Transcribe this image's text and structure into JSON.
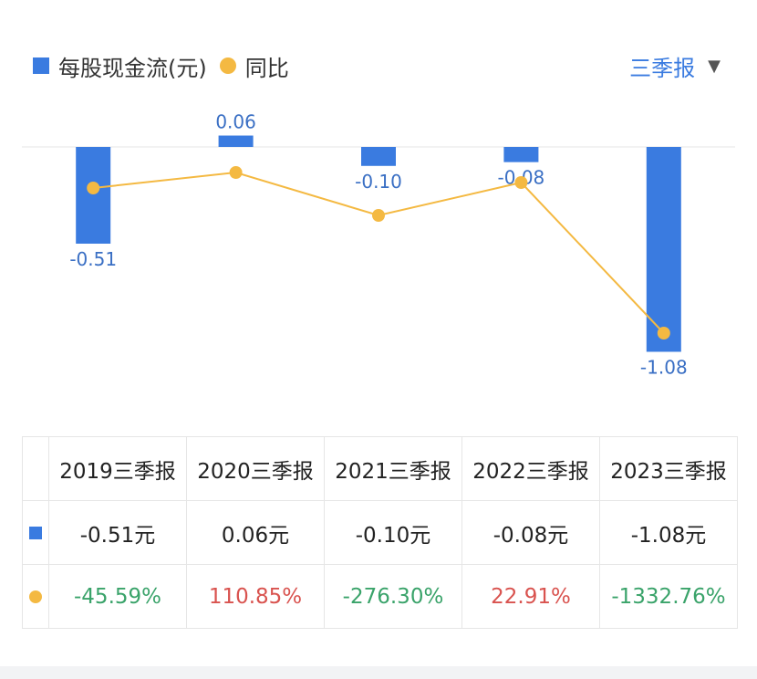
{
  "legend": {
    "bar_label": "每股现金流(元)",
    "line_label": "同比"
  },
  "period_selector": {
    "label": "三季报"
  },
  "colors": {
    "bar": "#3a7be0",
    "line": "#f4b942",
    "positive": "#d9534f",
    "negative": "#3aa36a"
  },
  "chart_data": {
    "type": "bar",
    "categories": [
      "2019三季报",
      "2020三季报",
      "2021三季报",
      "2022三季报",
      "2023三季报"
    ],
    "series": [
      {
        "name": "每股现金流(元)",
        "type": "bar",
        "values": [
          -0.51,
          0.06,
          -0.1,
          -0.08,
          -1.08
        ],
        "labels": [
          "-0.51",
          "0.06",
          "-0.10",
          "-0.08",
          "-1.08"
        ]
      },
      {
        "name": "同比",
        "type": "line",
        "values": [
          -45.59,
          110.85,
          -276.3,
          22.91,
          -1332.76
        ]
      }
    ],
    "legend_position": "top-left",
    "grid": false
  },
  "table": {
    "headers": [
      "2019三季报",
      "2020三季报",
      "2021三季报",
      "2022三季报",
      "2023三季报"
    ],
    "values": [
      "-0.51元",
      "0.06元",
      "-0.10元",
      "-0.08元",
      "-1.08元"
    ],
    "yoy": [
      {
        "text": "-45.59%",
        "sign": "neg"
      },
      {
        "text": "110.85%",
        "sign": "pos"
      },
      {
        "text": "-276.30%",
        "sign": "neg"
      },
      {
        "text": "22.91%",
        "sign": "pos"
      },
      {
        "text": "-1332.76%",
        "sign": "neg"
      }
    ]
  }
}
